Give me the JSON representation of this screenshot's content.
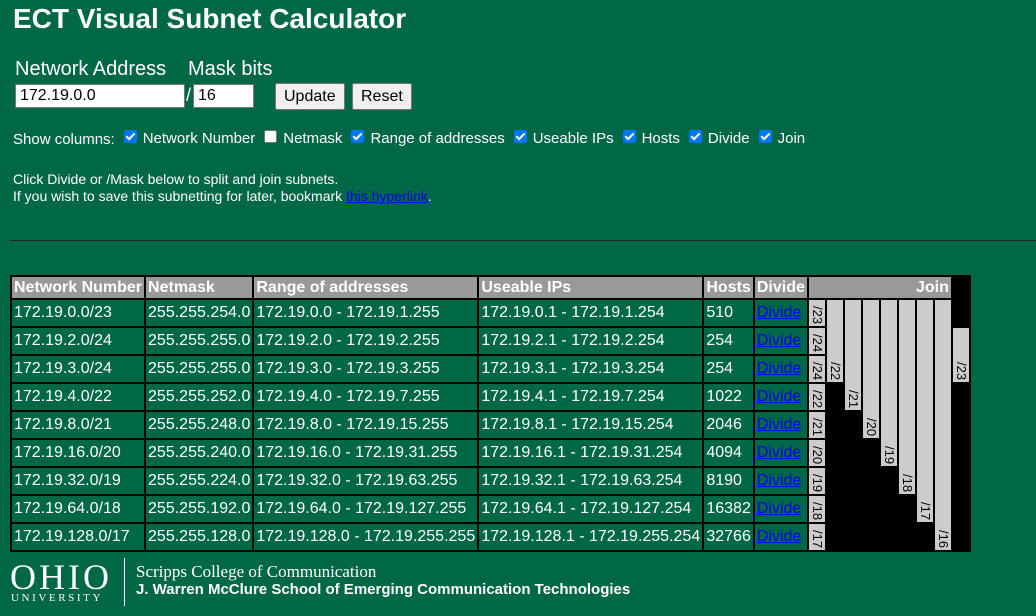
{
  "title": "ECT Visual Subnet Calculator",
  "form": {
    "network_label": "Network Address",
    "mask_label": "Mask bits",
    "network_value": "172.19.0.0",
    "slash": "/",
    "mask_value": "16",
    "update_label": "Update",
    "reset_label": "Reset"
  },
  "show_columns": {
    "label": "Show columns:",
    "items": [
      {
        "label": "Network Number",
        "checked": true
      },
      {
        "label": "Netmask",
        "checked": false
      },
      {
        "label": "Range of addresses",
        "checked": true
      },
      {
        "label": "Useable IPs",
        "checked": true
      },
      {
        "label": "Hosts",
        "checked": true
      },
      {
        "label": "Divide",
        "checked": true
      },
      {
        "label": "Join",
        "checked": true
      }
    ]
  },
  "info": {
    "line1": "Click Divide or /Mask below to split and join subnets.",
    "line2_prefix": "If you wish to save this subnetting for later, bookmark ",
    "link_text": "this hyperlink",
    "line2_suffix": "."
  },
  "table": {
    "headers": [
      "Network Number",
      "Netmask",
      "Range of addresses",
      "Useable IPs",
      "Hosts",
      "Divide",
      "Join"
    ],
    "rows": [
      [
        "172.19.0.0/23",
        "255.255.254.0",
        "172.19.0.0 - 172.19.1.255",
        "172.19.0.1 - 172.19.1.254",
        "510",
        "Divide"
      ],
      [
        "172.19.2.0/24",
        "255.255.255.0",
        "172.19.2.0 - 172.19.2.255",
        "172.19.2.1 - 172.19.2.254",
        "254",
        "Divide"
      ],
      [
        "172.19.3.0/24",
        "255.255.255.0",
        "172.19.3.0 - 172.19.3.255",
        "172.19.3.1 - 172.19.3.254",
        "254",
        "Divide"
      ],
      [
        "172.19.4.0/22",
        "255.255.252.0",
        "172.19.4.0 - 172.19.7.255",
        "172.19.4.1 - 172.19.7.254",
        "1022",
        "Divide"
      ],
      [
        "172.19.8.0/21",
        "255.255.248.0",
        "172.19.8.0 - 172.19.15.255",
        "172.19.8.1 - 172.19.15.254",
        "2046",
        "Divide"
      ],
      [
        "172.19.16.0/20",
        "255.255.240.0",
        "172.19.16.0 - 172.19.31.255",
        "172.19.16.1 - 172.19.31.254",
        "4094",
        "Divide"
      ],
      [
        "172.19.32.0/19",
        "255.255.224.0",
        "172.19.32.0 - 172.19.63.255",
        "172.19.32.1 - 172.19.63.254",
        "8190",
        "Divide"
      ],
      [
        "172.19.64.0/18",
        "255.255.192.0",
        "172.19.64.0 - 172.19.127.255",
        "172.19.64.1 - 172.19.127.254",
        "16382",
        "Divide"
      ],
      [
        "172.19.128.0/17",
        "255.255.128.0",
        "172.19.128.0 - 172.19.255.255",
        "172.19.128.1 - 172.19.255.254",
        "32766",
        "Divide"
      ]
    ],
    "join_cells": [
      {
        "label": "/24",
        "row": 1,
        "rowspan": 1
      },
      {
        "label": "/24",
        "row": 2,
        "rowspan": 1
      },
      {
        "label": "/23",
        "row": 0,
        "rowspan": 1
      },
      {
        "label": "/23",
        "row": 1,
        "rowspan": 2
      },
      {
        "label": "/22",
        "row": 0,
        "rowspan": 3
      },
      {
        "label": "/22",
        "row": 3,
        "rowspan": 1
      },
      {
        "label": "/21",
        "row": 0,
        "rowspan": 4
      },
      {
        "label": "/21",
        "row": 4,
        "rowspan": 1
      },
      {
        "label": "/20",
        "row": 0,
        "rowspan": 5
      },
      {
        "label": "/20",
        "row": 5,
        "rowspan": 1
      },
      {
        "label": "/19",
        "row": 0,
        "rowspan": 6
      },
      {
        "label": "/19",
        "row": 6,
        "rowspan": 1
      },
      {
        "label": "/18",
        "row": 0,
        "rowspan": 7
      },
      {
        "label": "/18",
        "row": 7,
        "rowspan": 1
      },
      {
        "label": "/17",
        "row": 0,
        "rowspan": 8
      },
      {
        "label": "/17",
        "row": 8,
        "rowspan": 1
      },
      {
        "label": "/16",
        "row": 0,
        "rowspan": 9
      }
    ]
  },
  "footer": {
    "ohio": "OHIO",
    "university": "UNIVERSITY",
    "college": "Scripps College of Communication",
    "school": "J. Warren McClure School of Emerging Communication Technologies"
  }
}
